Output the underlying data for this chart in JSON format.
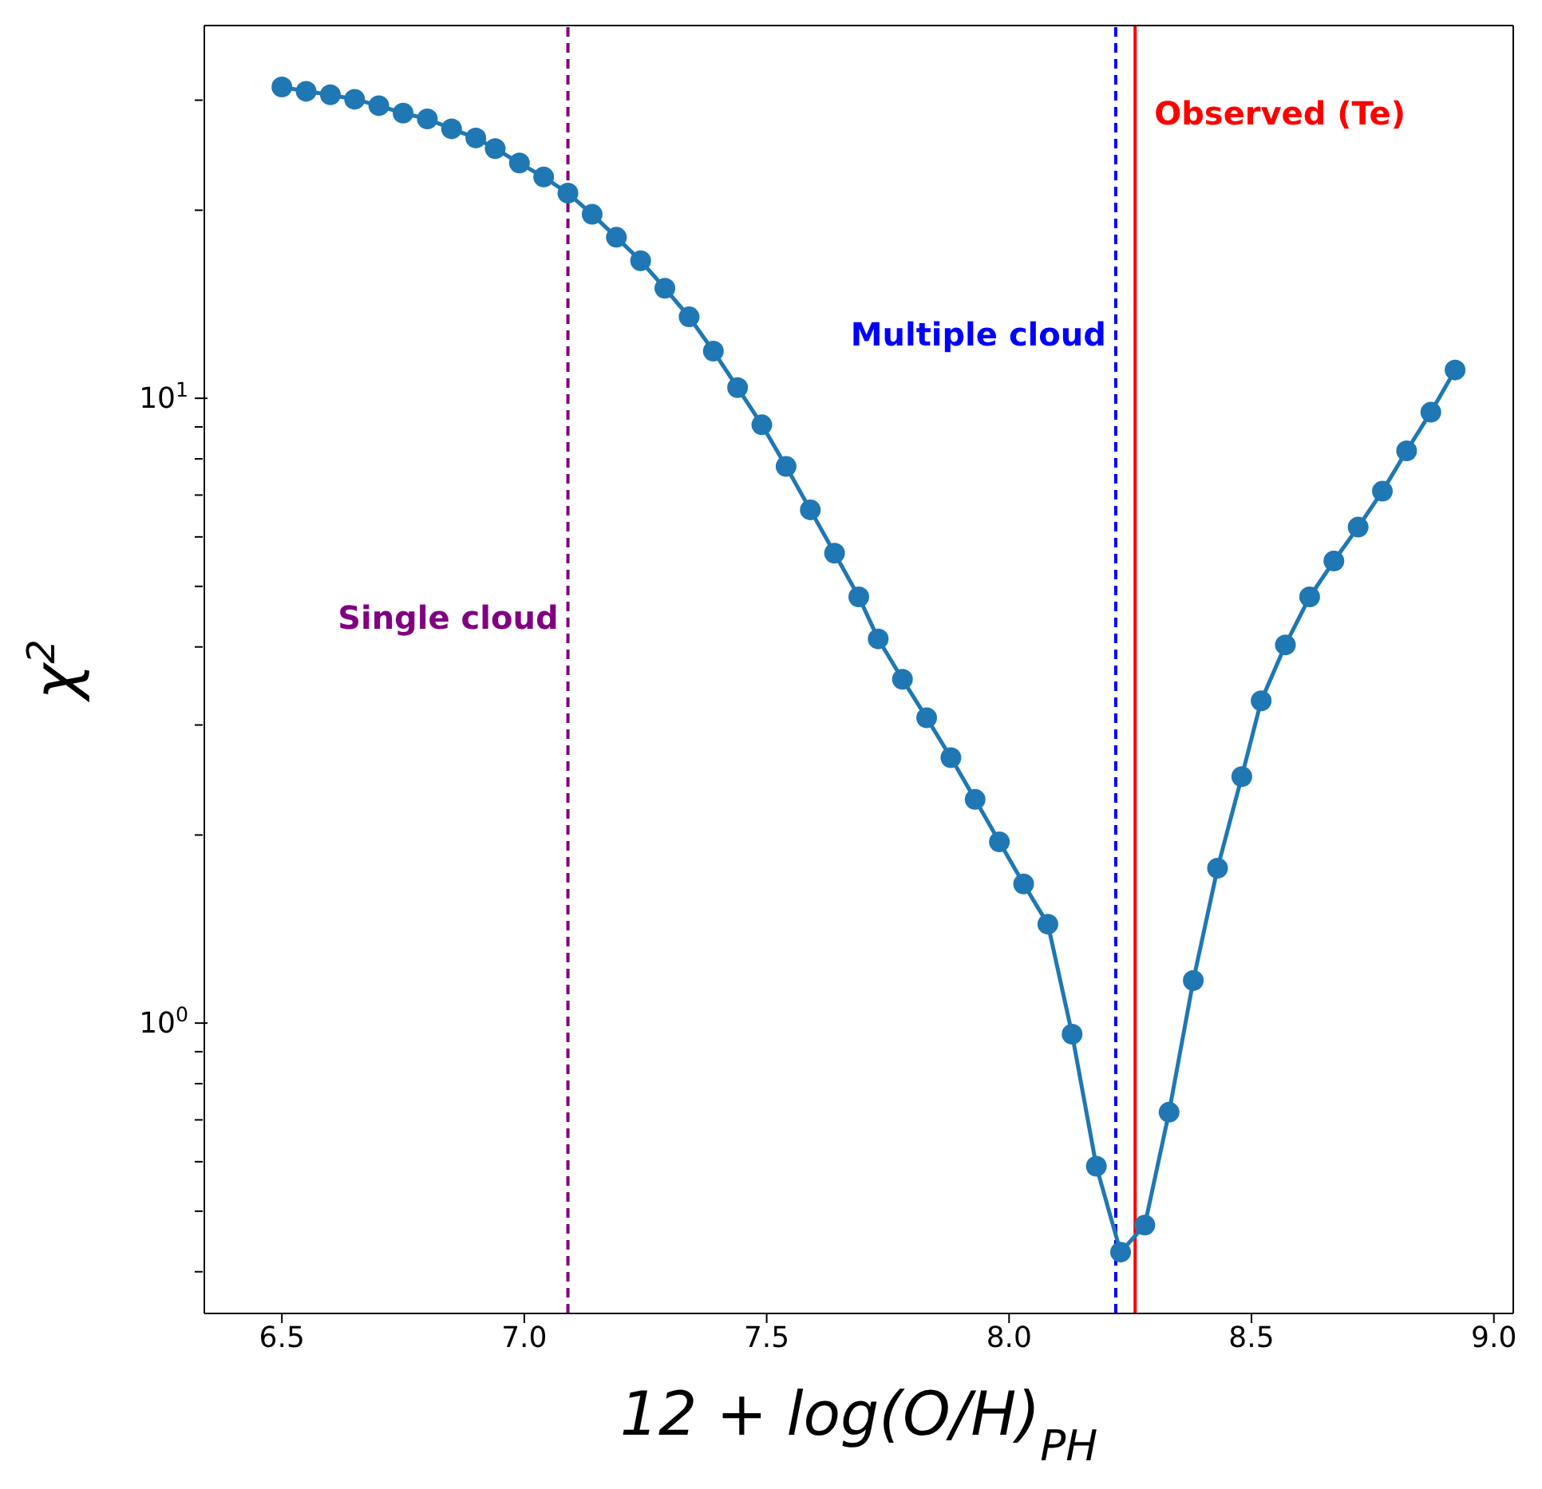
{
  "chart_data": {
    "type": "line",
    "xlabel": "12 + log(O/H)$_{PH}$",
    "ylabel": "χ$^{2}$",
    "x": [
      6.5,
      6.55,
      6.6,
      6.65,
      6.7,
      6.75,
      6.8,
      6.85,
      6.9,
      6.94,
      6.99,
      7.04,
      7.09,
      7.14,
      7.19,
      7.24,
      7.29,
      7.34,
      7.39,
      7.44,
      7.49,
      7.54,
      7.59,
      7.64,
      7.69,
      7.73,
      7.78,
      7.83,
      7.88,
      7.93,
      7.98,
      8.03,
      8.08,
      8.13,
      8.18,
      8.23,
      8.28,
      8.33,
      8.38,
      8.43,
      8.48,
      8.52,
      8.57,
      8.62,
      8.67,
      8.72,
      8.77,
      8.82,
      8.87,
      8.92
    ],
    "series": [
      {
        "color": "#1f77b4",
        "values": [
          31.5,
          31.0,
          30.6,
          30.1,
          29.4,
          28.6,
          28.0,
          27.0,
          26.1,
          25.1,
          23.8,
          22.6,
          21.3,
          19.7,
          18.1,
          16.6,
          15.0,
          13.5,
          11.9,
          10.4,
          9.07,
          7.78,
          6.63,
          5.65,
          4.81,
          4.12,
          3.55,
          3.08,
          2.66,
          2.28,
          1.95,
          1.67,
          1.44,
          0.96,
          0.59,
          0.43,
          0.475,
          0.72,
          1.17,
          1.77,
          2.48,
          3.28,
          4.03,
          4.81,
          5.49,
          6.22,
          7.1,
          8.24,
          9.5,
          11.1
        ]
      }
    ],
    "marker": "circle",
    "line_style": "solid",
    "log": "y",
    "xlim": [
      6.34,
      9.04
    ],
    "xticks": [
      6.5,
      {
        "value": 7,
        "label": "7.0"
      },
      7.5,
      {
        "value": 8,
        "label": "8.0"
      },
      8.5,
      {
        "value": 9,
        "label": "9.0"
      }
    ],
    "ylim": [
      0.343,
      39.5
    ],
    "yticks": [
      {
        "value": 0.4,
        "label": null
      },
      {
        "value": 0.5,
        "label": null
      },
      {
        "value": 0.6,
        "label": null
      },
      {
        "value": 0.7,
        "label": null
      },
      {
        "value": 0.8,
        "label": null
      },
      {
        "value": 0.9,
        "label": null
      },
      {
        "value": 1,
        "label": "10$^{0}$"
      },
      {
        "value": 2,
        "label": null
      },
      {
        "value": 3,
        "label": null
      },
      {
        "value": 4,
        "label": null
      },
      {
        "value": 5,
        "label": null
      },
      {
        "value": 6,
        "label": null
      },
      {
        "value": 7,
        "label": null
      },
      {
        "value": 8,
        "label": null
      },
      {
        "value": 9,
        "label": null
      },
      {
        "value": 10,
        "label": "10$^{1}$"
      },
      {
        "value": 20,
        "label": null
      },
      {
        "value": 30,
        "label": null
      }
    ],
    "ref_lines": [
      {
        "axis": "x",
        "value": 7.09,
        "color": "#800080",
        "line_style": "dashed",
        "label": "Single cloud"
      },
      {
        "axis": "x",
        "value": 8.22,
        "color": "#0000ff",
        "line_style": "dashed",
        "label": "Multiple cloud"
      },
      {
        "axis": "x",
        "value": 8.26,
        "color": "#ff0000",
        "line_style": "solid",
        "label": "Observed (Te)"
      }
    ]
  }
}
